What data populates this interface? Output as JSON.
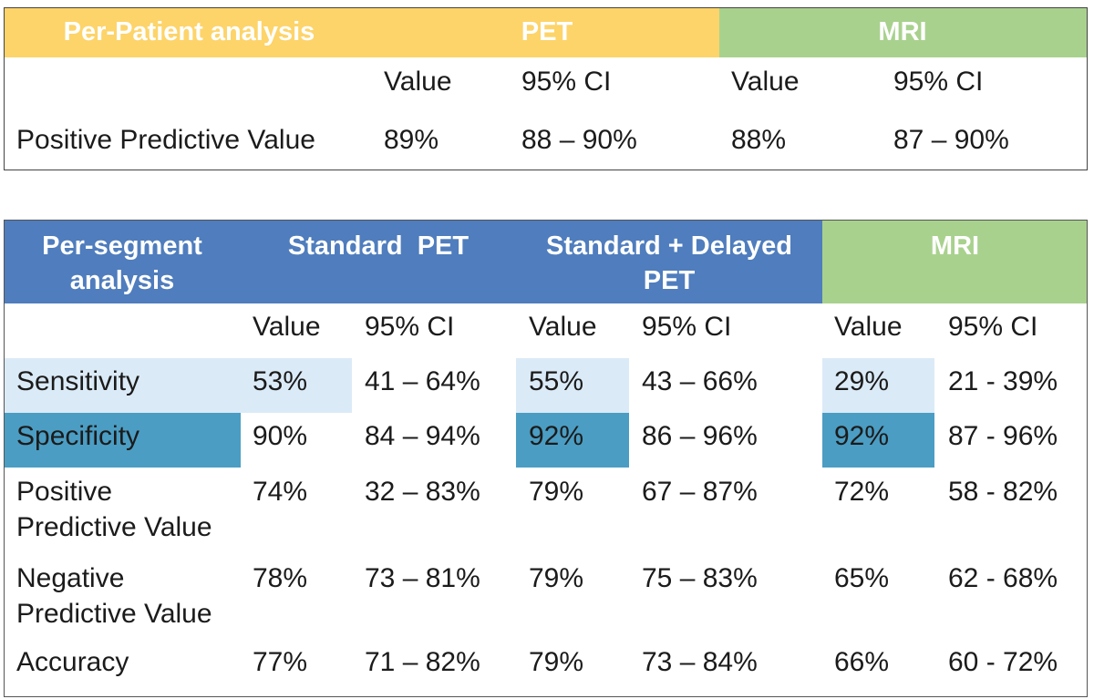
{
  "per_patient": {
    "header": {
      "label": "Per-Patient analysis",
      "pet": "PET",
      "mri": "MRI"
    },
    "subheader": {
      "pet_value": "Value",
      "pet_ci": "95% CI",
      "mri_value": "Value",
      "mri_ci": "95% CI"
    },
    "row": {
      "label": "Positive Predictive Value",
      "pet_value": "89%",
      "pet_ci": "88 – 90%",
      "mri_value": "88%",
      "mri_ci": "87 – 90%"
    }
  },
  "per_segment": {
    "header": {
      "label_line1": "Per-segment",
      "label_line2": "analysis",
      "std_pet": "Standard  PET",
      "std_delayed_line1": "Standard + Delayed",
      "std_delayed_line2": "PET",
      "mri": "MRI"
    },
    "subheader": {
      "std_value": "Value",
      "std_ci": "95% CI",
      "del_value": "Value",
      "del_ci": "95% CI",
      "mri_value": "Value",
      "mri_ci": "95% CI"
    },
    "rows": [
      {
        "label_line1": "Sensitivity",
        "label_line2": "",
        "std_value": "53%",
        "std_ci": "41 – 64%",
        "del_value": "55%",
        "del_ci": "43 – 66%",
        "mri_value": "29%",
        "mri_ci": "21 - 39%"
      },
      {
        "label_line1": "Specificity",
        "label_line2": "",
        "std_value": "90%",
        "std_ci": "84 – 94%",
        "del_value": "92%",
        "del_ci": "86 – 96%",
        "mri_value": "92%",
        "mri_ci": "87 - 96%"
      },
      {
        "label_line1": "Positive",
        "label_line2": "Predictive Value",
        "std_value": "74%",
        "std_ci": "32 – 83%",
        "del_value": "79%",
        "del_ci": "67 – 87%",
        "mri_value": "72%",
        "mri_ci": "58 - 82%"
      },
      {
        "label_line1": "Negative",
        "label_line2": "Predictive Value",
        "std_value": "78%",
        "std_ci": "73 – 81%",
        "del_value": "79%",
        "del_ci": "75 – 83%",
        "mri_value": "65%",
        "mri_ci": "62 - 68%"
      },
      {
        "label_line1": "Accuracy",
        "label_line2": "",
        "std_value": "77%",
        "std_ci": "71 – 82%",
        "del_value": "79%",
        "del_ci": "73 – 84%",
        "mri_value": "66%",
        "mri_ci": "60 - 72%"
      }
    ]
  },
  "colors": {
    "yellow_header": "#fdd46a",
    "green_header": "#a9d18e",
    "blue_header": "#4f7dbd",
    "light_highlight": "#dbeaf7",
    "dark_highlight": "#4b9dc3"
  }
}
